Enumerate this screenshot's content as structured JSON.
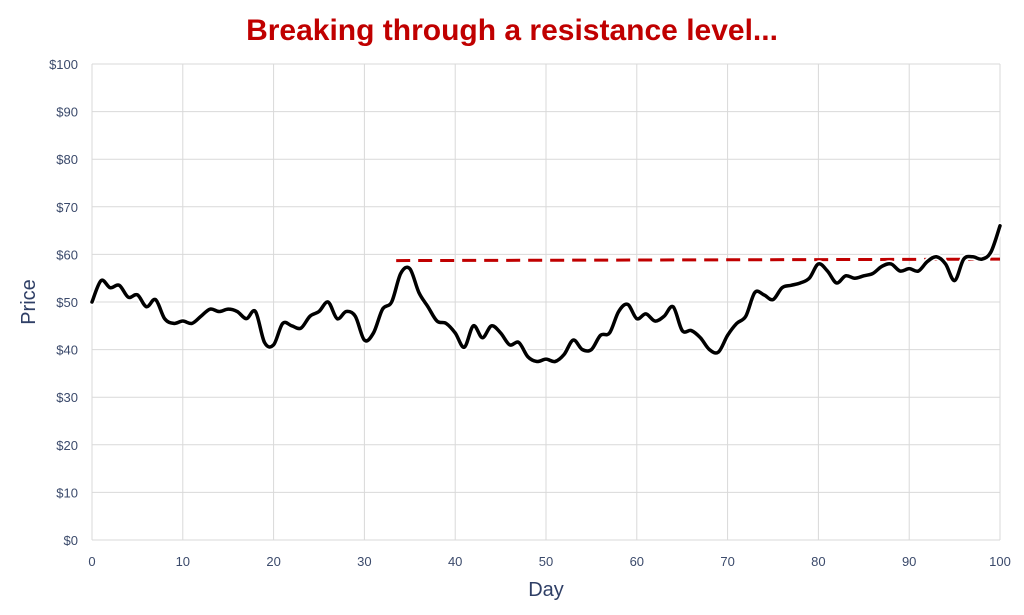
{
  "chart_data": {
    "type": "line",
    "title": "Breaking through a resistance level...",
    "xlabel": "Day",
    "ylabel": "Price",
    "xlim": [
      0,
      100
    ],
    "ylim": [
      0,
      100
    ],
    "x_ticks": [
      0,
      10,
      20,
      30,
      40,
      50,
      60,
      70,
      80,
      90,
      100
    ],
    "y_ticks": [
      0,
      10,
      20,
      30,
      40,
      50,
      60,
      70,
      80,
      90,
      100
    ],
    "y_tick_labels": [
      "$0",
      "$10",
      "$20",
      "$30",
      "$40",
      "$50",
      "$60",
      "$70",
      "$80",
      "$90",
      "$100"
    ],
    "grid": true,
    "legend": "none",
    "colors": {
      "title": "#c00000",
      "line": "#000000",
      "resistance": "#c00000",
      "grid": "#d9d9d9",
      "axis_text": "#3b4a6b"
    },
    "series": [
      {
        "x": [
          0,
          1,
          2,
          3,
          4,
          5,
          6,
          7,
          8,
          9,
          10,
          11,
          12,
          13,
          14,
          15,
          16,
          17,
          18,
          19,
          20,
          21,
          22,
          23,
          24,
          25,
          26,
          27,
          28,
          29,
          30,
          31,
          32,
          33,
          34,
          35,
          36,
          37,
          38,
          39,
          40,
          41,
          42,
          43,
          44,
          45,
          46,
          47,
          48,
          49,
          50,
          51,
          52,
          53,
          54,
          55,
          56,
          57,
          58,
          59,
          60,
          61,
          62,
          63,
          64,
          65,
          66,
          67,
          68,
          69,
          70,
          71,
          72,
          73,
          74,
          75,
          76,
          77,
          78,
          79,
          80,
          81,
          82,
          83,
          84,
          85,
          86,
          87,
          88,
          89,
          90,
          91,
          92,
          93,
          94,
          95,
          96,
          97,
          98,
          99,
          100
        ],
        "y": [
          50,
          54.5,
          53,
          53.5,
          51,
          51.5,
          49,
          50.5,
          46.5,
          45.5,
          46,
          45.5,
          47,
          48.5,
          48,
          48.5,
          48,
          46.5,
          48,
          41.5,
          41,
          45.5,
          45,
          44.5,
          47,
          48,
          50,
          46.5,
          48,
          47,
          42,
          43.5,
          48.5,
          50,
          56,
          57,
          52,
          49,
          46,
          45.5,
          43.5,
          40.5,
          45,
          42.5,
          45,
          43.5,
          41,
          41.5,
          38.5,
          37.5,
          38,
          37.5,
          39,
          42,
          40,
          40,
          43,
          43.5,
          48,
          49.5,
          46.5,
          47.5,
          46,
          47,
          49,
          44,
          44,
          42.5,
          40,
          39.5,
          43,
          45.5,
          47,
          52,
          51.5,
          50.5,
          53,
          53.5,
          54,
          55,
          58,
          56.5,
          54,
          55.5,
          55,
          55.5,
          56,
          57.5,
          58,
          56.5,
          57,
          56.5,
          58.5,
          59.5,
          58,
          54.5,
          59,
          59.5,
          59,
          60.5,
          66
        ]
      }
    ],
    "resistance": {
      "x_start": 33.5,
      "x_end": 100,
      "y_start": 58.7,
      "y_end": 59
    }
  }
}
